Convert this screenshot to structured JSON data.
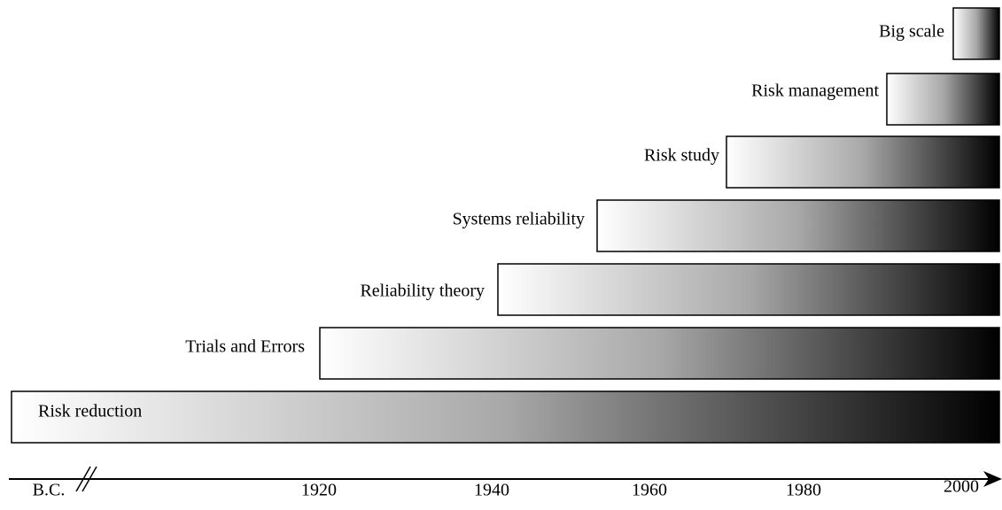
{
  "bars": [
    {
      "label": "Big scale"
    },
    {
      "label": "Risk management"
    },
    {
      "label": "Risk study"
    },
    {
      "label": "Systems reliability"
    },
    {
      "label": "Reliability theory"
    },
    {
      "label": "Trials and Errors"
    },
    {
      "label": "Risk reduction"
    }
  ],
  "axis": {
    "labels": [
      "B.C.",
      "1920",
      "1940",
      "1960",
      "1980",
      "2000"
    ]
  }
}
